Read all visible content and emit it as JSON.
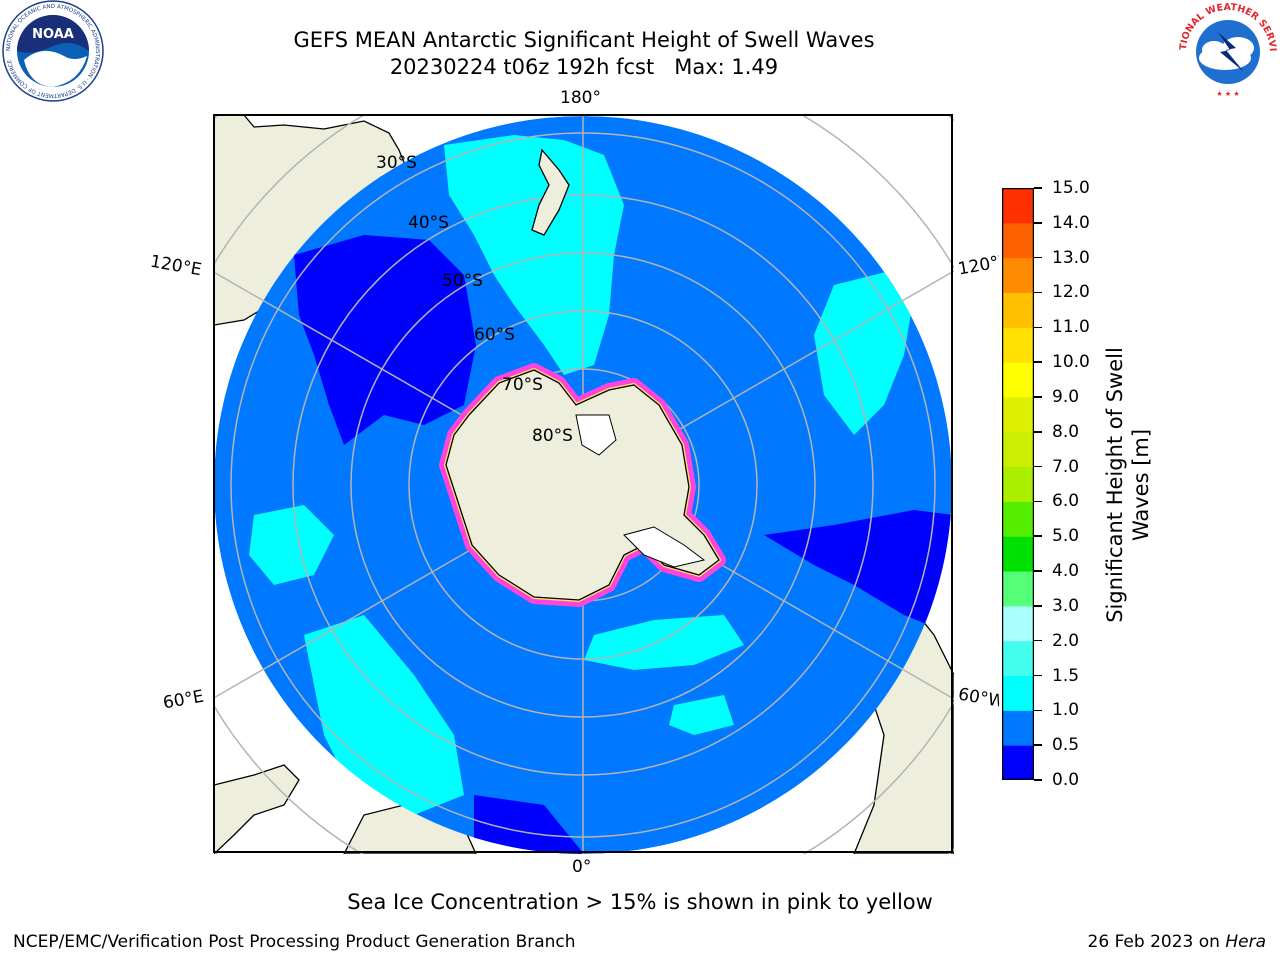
{
  "header": {
    "title_line1": "GEFS MEAN Antarctic Significant Height of Swell Waves",
    "title_line2": "20230224 t06z 192h fcst   Max: 1.49"
  },
  "logos": {
    "noaa_text": "NOAA",
    "noaa_ring_text": "NATIONAL OCEANIC AND ATMOSPHERIC ADMINISTRATION · U.S. DEPARTMENT OF COMMERCE",
    "nws_ring_text": "NATIONAL WEATHER SERVICE"
  },
  "map": {
    "projection": "south-polar-stereographic",
    "lat_labels": [
      "30°S",
      "40°S",
      "50°S",
      "60°S",
      "70°S",
      "80°S"
    ],
    "lon_labels": {
      "top": "180°",
      "bottom": "0°",
      "upper_left": "120°E",
      "upper_right": "120°W",
      "lower_left": "60°E",
      "lower_right": "60°W"
    },
    "colors": {
      "land": "#eeeedc",
      "ocean_outside": "#ffffff",
      "coast": "#000000",
      "grid": "#b4b4b4",
      "bin_0_05": "#0000ff",
      "bin_05_10": "#0078ff",
      "bin_10_15": "#00ffff",
      "sea_ice_pink": "#ff44dd",
      "sea_ice_yellow": "#ffe066"
    }
  },
  "colorbar": {
    "ticks": [
      "15.0",
      "14.0",
      "13.0",
      "12.0",
      "11.0",
      "10.0",
      "9.0",
      "8.0",
      "7.0",
      "6.0",
      "5.0",
      "4.0",
      "3.0",
      "2.0",
      "1.5",
      "1.0",
      "0.5",
      "0.0"
    ],
    "colors_bottom_to_top": [
      "#0000ff",
      "#0078ff",
      "#00ffff",
      "#44ffee",
      "#aaffff",
      "#55ff77",
      "#00e000",
      "#55ee00",
      "#aaee00",
      "#ccee00",
      "#ddee00",
      "#ffff00",
      "#ffe000",
      "#ffc000",
      "#ff8c00",
      "#ff6000",
      "#ff3000"
    ],
    "label_line1": "Significant Height of Swell",
    "label_line2": "Waves [m]"
  },
  "note": "Sea Ice Concentration > 15% is shown in pink to yellow",
  "footer": {
    "left": "NCEP/EMC/Verification Post Processing Product Generation Branch",
    "right_prefix": "26 Feb 2023 on ",
    "right_host": "Hera"
  }
}
